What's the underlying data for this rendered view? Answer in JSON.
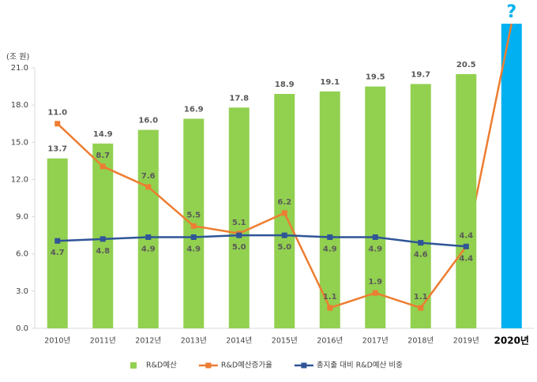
{
  "chart_data": {
    "type": "bar",
    "y_axis_label": "(조 원)",
    "annotation": "?",
    "categories": [
      "2010년",
      "2011년",
      "2012년",
      "2013년",
      "2014년",
      "2015년",
      "2016년",
      "2017년",
      "2018년",
      "2019년",
      "2020년"
    ],
    "ylim": [
      0,
      21
    ],
    "yticks": [
      {
        "value": 0,
        "label": "0.0"
      },
      {
        "value": 3,
        "label": "3.0"
      },
      {
        "value": 6,
        "label": "6.0"
      },
      {
        "value": 9,
        "label": "9.0"
      },
      {
        "value": 12,
        "label": "12.0"
      },
      {
        "value": 15,
        "label": "15.0"
      },
      {
        "value": 18,
        "label": "18.0"
      },
      {
        "value": 21,
        "label": "21.0"
      }
    ],
    "y2lim": [
      0,
      14
    ],
    "legend": "bottom",
    "series": [
      {
        "name": "R&D예산",
        "type": "bar",
        "color": "#92d050",
        "values": [
          13.7,
          14.9,
          16,
          16.9,
          17.8,
          18.9,
          19.1,
          19.5,
          19.7,
          20.5,
          null
        ],
        "value_labels": [
          "13.7",
          "14.9",
          "16.0",
          "16.9",
          "17.8",
          "18.9",
          "19.1",
          "19.5",
          "19.7",
          "20.5",
          null
        ]
      },
      {
        "name": "R&D예산증가율",
        "type": "line",
        "axis": "y2",
        "color": "#ed7d31",
        "values": [
          11,
          8.7,
          7.6,
          5.5,
          5.1,
          6.2,
          1.1,
          1.9,
          1.1,
          4.4,
          null
        ],
        "value_labels": [
          "11.0",
          "8.7",
          "7.6",
          "5.5",
          "5.1",
          "6.2",
          "1.1",
          "1.9",
          "1.1",
          "4.4",
          null
        ]
      },
      {
        "name": "총지출 대비 R&D예산 비중",
        "type": "line",
        "axis": "y2",
        "color": "#2f5597",
        "values": [
          4.7,
          4.8,
          4.9,
          4.9,
          5,
          5,
          4.9,
          4.9,
          4.6,
          4.4,
          null
        ],
        "value_labels": [
          "4.7",
          "4.8",
          "4.9",
          "4.9",
          "5.0",
          "5.0",
          "4.9",
          "4.9",
          "4.6",
          "4.4",
          null
        ]
      }
    ]
  }
}
